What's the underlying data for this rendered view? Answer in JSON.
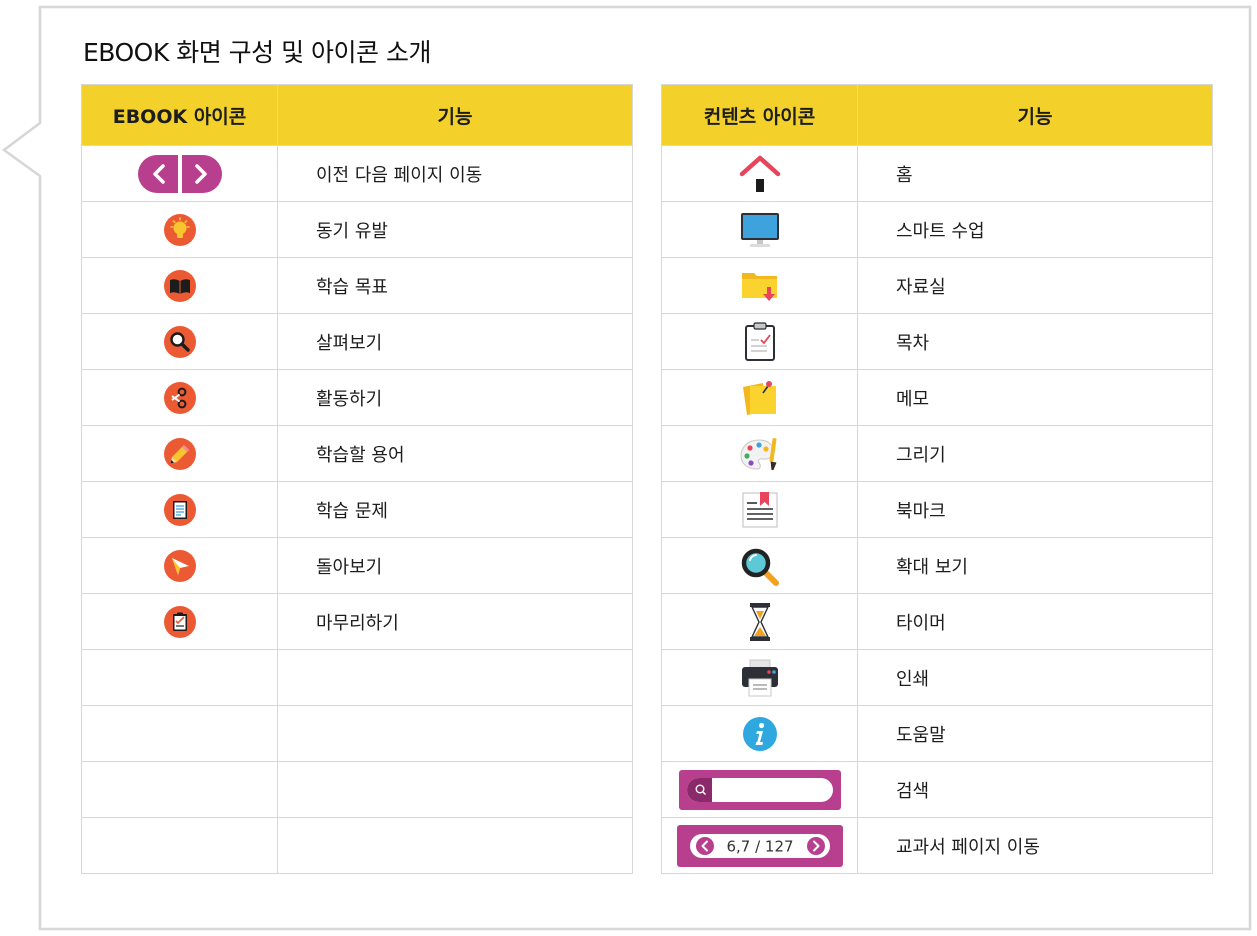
{
  "page_title": "EBOOK 화면 구성 및 아이콘 소개",
  "ebook_table": {
    "headers": [
      "EBOOK 아이콘",
      "기능"
    ],
    "rows": [
      {
        "icon": "prev-next-arrows-icon",
        "label": "이전 다음 페이지 이동"
      },
      {
        "icon": "lightbulb-icon",
        "label": "동기 유발"
      },
      {
        "icon": "open-book-icon",
        "label": "학습 목표"
      },
      {
        "icon": "magnifier-icon",
        "label": "살펴보기"
      },
      {
        "icon": "scissors-icon",
        "label": "활동하기"
      },
      {
        "icon": "pencil-icon",
        "label": "학습할 용어"
      },
      {
        "icon": "document-icon",
        "label": "학습 문제"
      },
      {
        "icon": "paper-plane-icon",
        "label": "돌아보기"
      },
      {
        "icon": "checklist-icon",
        "label": "마무리하기"
      },
      {
        "icon": "",
        "label": ""
      },
      {
        "icon": "",
        "label": ""
      },
      {
        "icon": "",
        "label": ""
      },
      {
        "icon": "",
        "label": ""
      }
    ]
  },
  "content_table": {
    "headers": [
      "컨텐츠 아이콘",
      "기능"
    ],
    "rows": [
      {
        "icon": "home-icon",
        "label": "홈"
      },
      {
        "icon": "monitor-icon",
        "label": "스마트 수업"
      },
      {
        "icon": "folder-download-icon",
        "label": "자료실"
      },
      {
        "icon": "clipboard-icon",
        "label": "목차"
      },
      {
        "icon": "sticky-note-icon",
        "label": "메모"
      },
      {
        "icon": "palette-icon",
        "label": "그리기"
      },
      {
        "icon": "bookmark-icon",
        "label": "북마크"
      },
      {
        "icon": "zoom-icon",
        "label": "확대 보기"
      },
      {
        "icon": "hourglass-icon",
        "label": "타이머"
      },
      {
        "icon": "printer-icon",
        "label": "인쇄"
      },
      {
        "icon": "info-icon",
        "label": "도움말"
      },
      {
        "icon": "search-bar-icon",
        "label": "검색"
      },
      {
        "icon": "page-navigator-icon",
        "label": "교과서 페이지 이동"
      }
    ]
  },
  "page_navigator": {
    "value": "6,7 / 127"
  },
  "colors": {
    "header_bg": "#f3d12a",
    "ebook_icon": "#ec5a34",
    "purple": "#b83f8e",
    "border": "#d7d7d7"
  }
}
